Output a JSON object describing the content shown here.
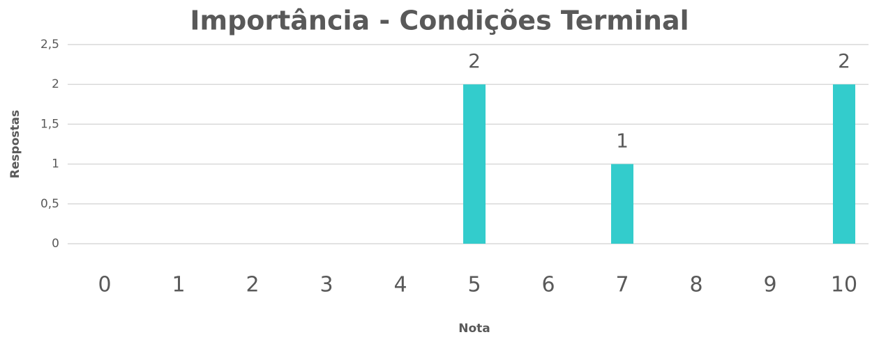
{
  "chart_data": {
    "type": "bar",
    "title": "Importância - Condições Terminal",
    "x_label": "Nota",
    "y_label": "Respostas",
    "categories": [
      "0",
      "1",
      "2",
      "3",
      "4",
      "5",
      "6",
      "7",
      "8",
      "9",
      "10"
    ],
    "values": [
      0,
      0,
      0,
      0,
      0,
      2,
      0,
      1,
      0,
      0,
      2
    ],
    "color": "#33cccc",
    "ylim": [
      0,
      2.5
    ],
    "yticks": [
      0,
      {
        "value": 0.5,
        "label": "0,5"
      },
      1,
      {
        "value": 1.5,
        "label": "1,5"
      },
      2,
      {
        "value": 2.5,
        "label": "2,5"
      }
    ],
    "grid": true
  }
}
